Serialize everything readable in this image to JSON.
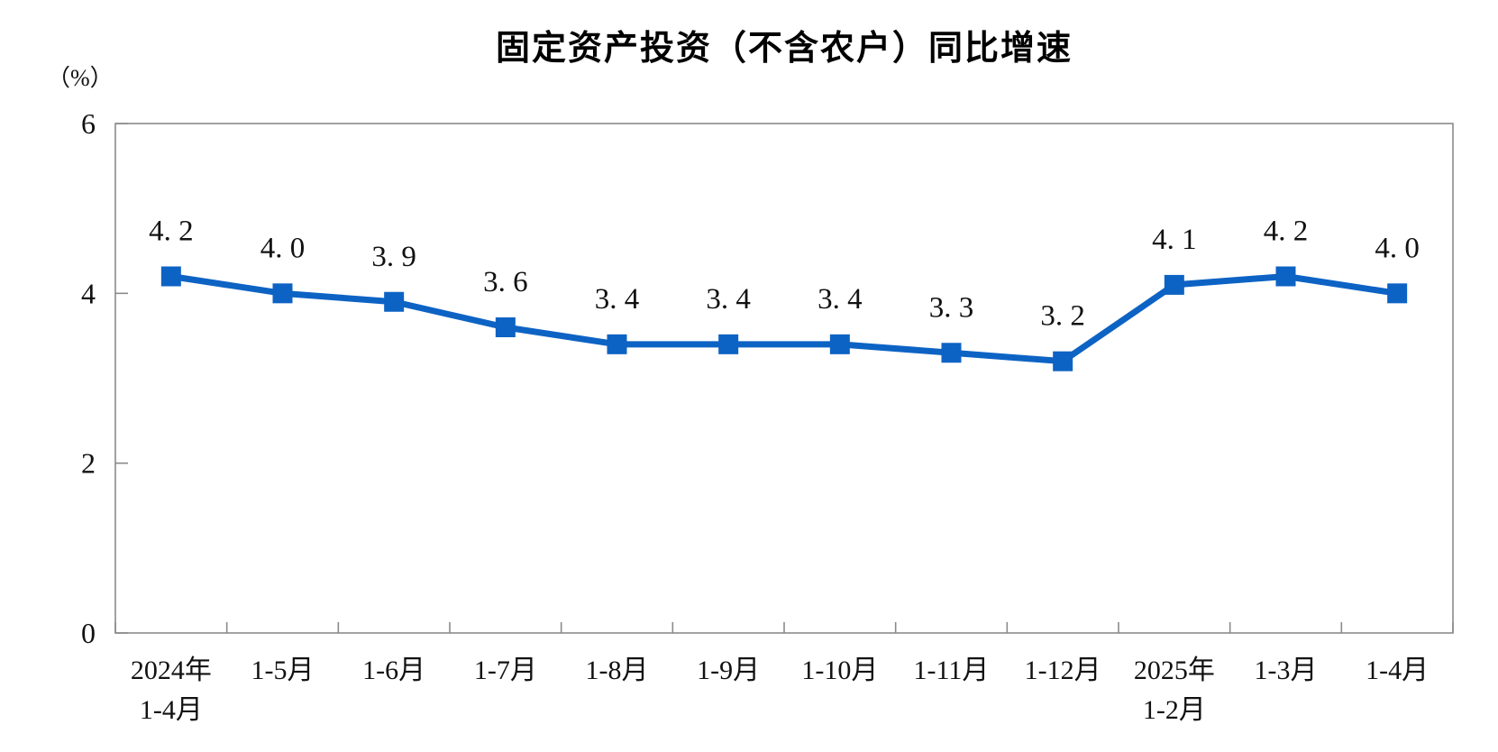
{
  "chart": {
    "title": "固定资产投资（不含农户）同比增速",
    "unit_label": "（%）"
  },
  "chart_data": {
    "type": "line",
    "title": "固定资产投资（不含农户）同比增速",
    "xlabel": "",
    "ylabel": "（%）",
    "ylim": [
      0,
      6
    ],
    "yticks": [
      "0",
      "2",
      "4",
      "6"
    ],
    "grid": false,
    "legend_position": "none",
    "axis_color": "#8a8a8a",
    "text_color": "#111111",
    "categories": [
      [
        "2024年",
        "1-4月"
      ],
      [
        "1-5月"
      ],
      [
        "1-6月"
      ],
      [
        "1-7月"
      ],
      [
        "1-8月"
      ],
      [
        "1-9月"
      ],
      [
        "1-10月"
      ],
      [
        "1-11月"
      ],
      [
        "1-12月"
      ],
      [
        "2025年",
        "1-2月"
      ],
      [
        "1-3月"
      ],
      [
        "1-4月"
      ]
    ],
    "series": [
      {
        "name": "固定资产投资（不含农户）同比增速",
        "values": [
          4.2,
          4.0,
          3.9,
          3.6,
          3.4,
          3.4,
          3.4,
          3.3,
          3.2,
          4.1,
          4.2,
          4.0
        ],
        "point_labels": [
          "4. 2",
          "4. 0",
          "3. 9",
          "3. 6",
          "3. 4",
          "3. 4",
          "3. 4",
          "3. 3",
          "3. 2",
          "4. 1",
          "4. 2",
          "4. 0"
        ],
        "color": "#0d63c4",
        "marker": "square"
      }
    ]
  }
}
